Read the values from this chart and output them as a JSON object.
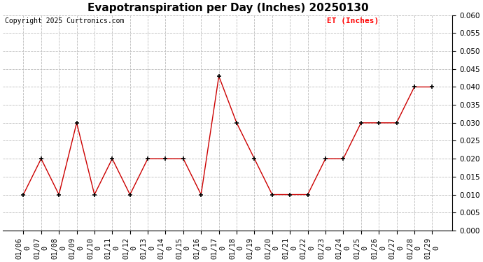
{
  "title": "Evapotranspiration per Day (Inches) 20250130",
  "copyright": "Copyright 2025 Curtronics.com",
  "legend_label": "ET (Inches)",
  "x_labels": [
    "01/06",
    "01/07",
    "01/08",
    "01/09",
    "01/10",
    "01/11",
    "01/12",
    "01/13",
    "01/14",
    "01/15",
    "01/16",
    "01/17",
    "01/18",
    "01/19",
    "01/20",
    "01/21",
    "01/22",
    "01/23",
    "01/24",
    "01/25",
    "01/26",
    "01/27",
    "01/28",
    "01/29"
  ],
  "x_labels_second_row": [
    "0",
    "0",
    "0",
    "0",
    "0",
    "0",
    "0",
    "0",
    "0",
    "0",
    "0",
    "0",
    "0",
    "0",
    "0",
    "0",
    "0",
    "0",
    "0",
    "0",
    "0",
    "0",
    "0",
    "0"
  ],
  "y_values": [
    0.01,
    0.02,
    0.01,
    0.03,
    0.01,
    0.02,
    0.01,
    0.02,
    0.02,
    0.02,
    0.01,
    0.043,
    0.03,
    0.02,
    0.01,
    0.01,
    0.01,
    0.02,
    0.02,
    0.03,
    0.03,
    0.03,
    0.04,
    0.04
  ],
  "line_color": "#cc0000",
  "marker_color": "#000000",
  "ylim": [
    0.0,
    0.06
  ],
  "yticks": [
    0.0,
    0.005,
    0.01,
    0.015,
    0.02,
    0.025,
    0.03,
    0.035,
    0.04,
    0.045,
    0.05,
    0.055,
    0.06
  ],
  "grid_color": "#bbbbbb",
  "background_color": "#ffffff",
  "title_fontsize": 11,
  "copyright_fontsize": 7,
  "legend_fontsize": 8,
  "tick_fontsize": 7.5
}
